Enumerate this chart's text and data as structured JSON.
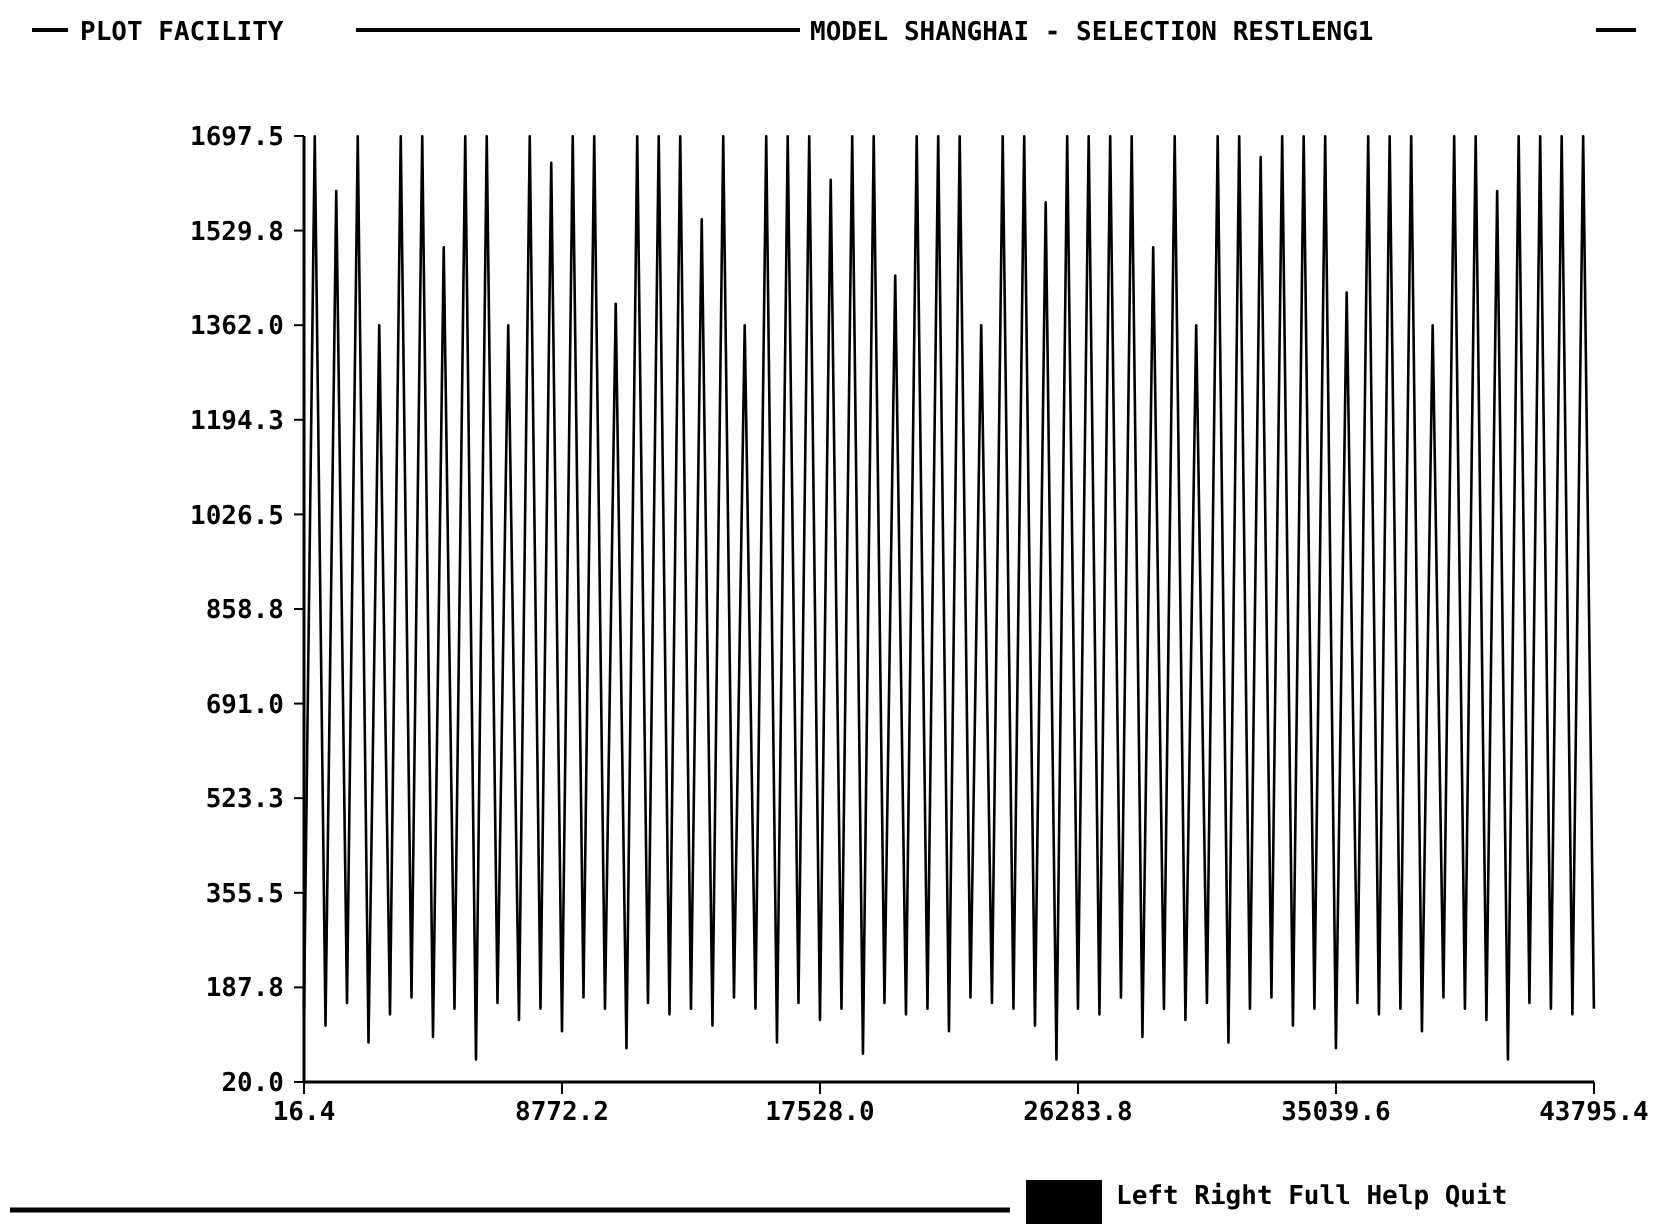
{
  "chart_data": {
    "type": "line",
    "title": "MODEL SHANGHAI - SELECTION RESTLENG1",
    "subtitle": "PLOT FACILITY",
    "annotations": [
      "Left Right Full Help Quit"
    ],
    "x": [
      16.4,
      381.2,
      746,
      1110.8,
      1475.6,
      1840.4,
      2205.2,
      2570,
      2934.8,
      3299.6,
      3664.4,
      4029.2,
      4394,
      4758.8,
      5123.6,
      5488.4,
      5853.2,
      6218,
      6582.8,
      6947.6,
      7312.4,
      7677.2,
      8042,
      8406.8,
      8771.6,
      9136.4,
      9501.2,
      9866,
      10230.8,
      10595.6,
      10960.4,
      11325.2,
      11690,
      12054.8,
      12419.6,
      12784.4,
      13149.2,
      13514,
      13878.8,
      14243.6,
      14608.4,
      14973.2,
      15338,
      15702.8,
      16067.6,
      16432.4,
      16797.2,
      17162,
      17526.8,
      17891.6,
      18256.4,
      18621.2,
      18986,
      19350.8,
      19715.6,
      20080.4,
      20445.2,
      20810,
      21174.8,
      21539.6,
      21904.4,
      22269.2,
      22634,
      22998.8,
      23363.6,
      23728.4,
      24093.2,
      24458,
      24822.8,
      25187.6,
      25552.4,
      25917.2,
      26282,
      26646.8,
      27011.6,
      27376.4,
      27741.2,
      28106,
      28470.8,
      28835.6,
      29200.4,
      29565.2,
      29930,
      30294.8,
      30659.6,
      31024.4,
      31389.2,
      31754,
      32118.8,
      32483.6,
      32848.4,
      33213.2,
      33578,
      33942.8,
      34307.6,
      34672.4,
      35037.2,
      35402,
      35766.8,
      36131.6,
      36496.4,
      36861.2,
      37226,
      37590.8,
      37955.6,
      38320.4,
      38685.2,
      39050,
      39414.8,
      39779.6,
      40144.4,
      40509.2,
      40874,
      41238.8,
      41603.6,
      41968.4,
      42333.2,
      42698,
      43062.8,
      43427.6,
      43792.4
    ],
    "series": [
      {
        "color": "#000000",
        "values": [
          150,
          1697,
          120,
          1600,
          160,
          1697,
          90,
          1362,
          140,
          1697,
          170,
          1697,
          100,
          1500,
          150,
          1697,
          60,
          1697,
          160,
          1362,
          130,
          1697,
          150,
          1650,
          110,
          1697,
          170,
          1697,
          150,
          1400,
          80,
          1697,
          160,
          1697,
          140,
          1697,
          150,
          1550,
          120,
          1697,
          170,
          1362,
          150,
          1697,
          90,
          1697,
          160,
          1697,
          130,
          1620,
          150,
          1697,
          70,
          1697,
          160,
          1450,
          140,
          1697,
          150,
          1697,
          110,
          1697,
          170,
          1362,
          160,
          1697,
          150,
          1697,
          120,
          1580,
          60,
          1697,
          150,
          1697,
          140,
          1697,
          170,
          1697,
          100,
          1500,
          150,
          1697,
          130,
          1362,
          160,
          1697,
          90,
          1697,
          150,
          1660,
          170,
          1697,
          120,
          1697,
          150,
          1697,
          80,
          1420,
          160,
          1697,
          140,
          1697,
          150,
          1697,
          110,
          1362,
          170,
          1697,
          150,
          1697,
          130,
          1600,
          60,
          1697,
          160,
          1697,
          150,
          1697,
          140,
          1697,
          150
        ]
      }
    ],
    "xlim": [
      16.4,
      43795.4
    ],
    "xticks": [
      16.4,
      8772.2,
      {
        "value": 17528.0,
        "label": "17528.0"
      },
      26283.8,
      35039.6,
      43795.4
    ],
    "ylim": [
      20.0,
      1697.5
    ],
    "yticks": [
      {
        "value": 20.0,
        "label": "20.0"
      },
      187.8,
      355.5,
      523.3,
      {
        "value": 691.0,
        "label": "691.0"
      },
      858.8,
      1026.5,
      1194.3,
      {
        "value": 1362.0,
        "label": "1362.0"
      },
      1529.8,
      1697.5
    ],
    "grid": false,
    "marker": "none",
    "line_style": "solid"
  }
}
